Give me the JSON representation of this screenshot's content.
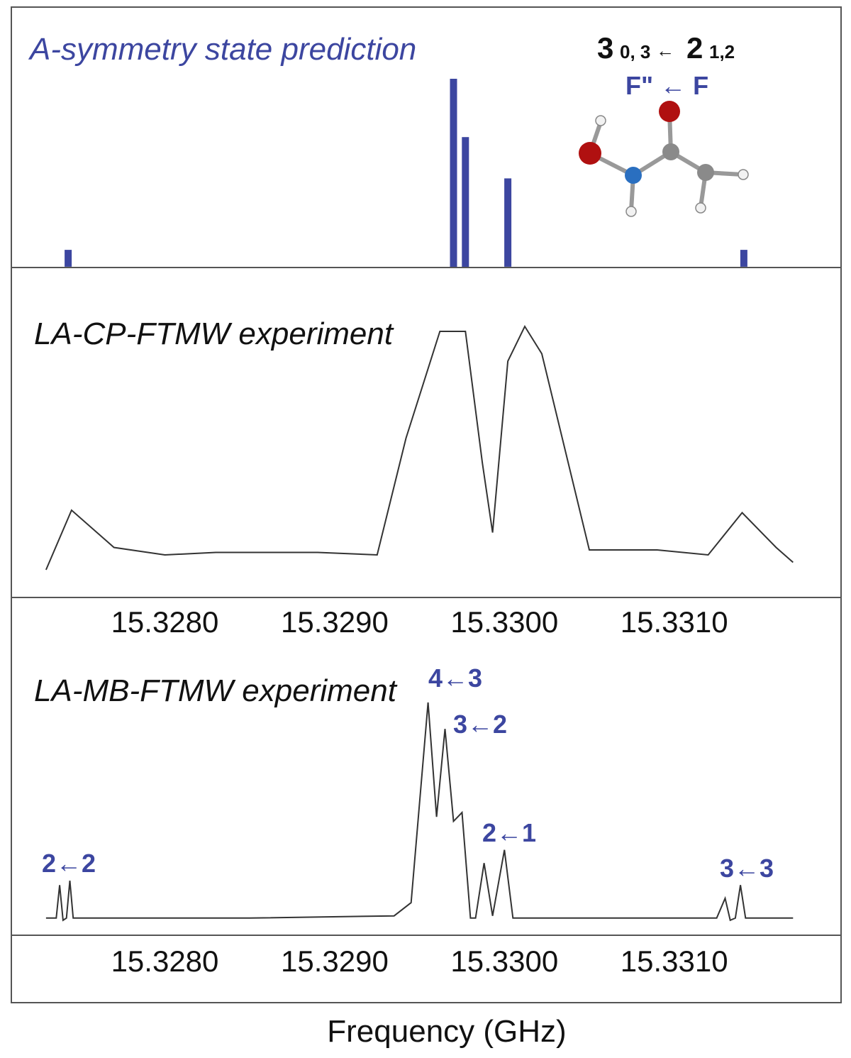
{
  "panels": {
    "prediction_title": "A-symmetry state prediction",
    "cp_title": "LA-CP-FTMW experiment",
    "mb_title": "LA-MB-FTMW experiment",
    "xlabel": "Frequency (GHz)"
  },
  "transition": {
    "upper_j": "3",
    "upper_sub": "0, 3",
    "arrow": "←",
    "lower_j": "2",
    "lower_sub": "1,2",
    "f_label": "F\" ← F"
  },
  "colors": {
    "accent": "#3c46a0",
    "trace": "#333333",
    "frame": "#555555",
    "oxygen": "#b01010",
    "nitrogen": "#2a6fc0",
    "carbon": "#8a8a8a",
    "hydrogen": "#f2f2f2"
  },
  "chart_data": [
    {
      "type": "bar",
      "panel": "prediction",
      "x": [
        15.32743,
        15.3297,
        15.32977,
        15.33002,
        15.33141
      ],
      "values": [
        0.09,
        1.0,
        0.69,
        0.47,
        0.09
      ],
      "xlim": [
        15.3272,
        15.3319
      ]
    },
    {
      "type": "line",
      "panel": "cp",
      "x": [
        15.3273,
        15.32745,
        15.3277,
        15.328,
        15.3283,
        15.3286,
        15.3289,
        15.32925,
        15.32942,
        15.32962,
        15.32977,
        15.32987,
        15.32993,
        15.33002,
        15.33012,
        15.33022,
        15.3305,
        15.3309,
        15.3312,
        15.3314,
        15.3316,
        15.3317
      ],
      "values": [
        0.02,
        0.26,
        0.11,
        0.08,
        0.09,
        0.09,
        0.09,
        0.08,
        0.55,
        0.98,
        0.98,
        0.45,
        0.17,
        0.86,
        1.0,
        0.89,
        0.1,
        0.1,
        0.08,
        0.25,
        0.11,
        0.05
      ],
      "xlim": [
        15.3272,
        15.3319
      ],
      "ticks": [
        "15.3280",
        "15.3290",
        "15.3300",
        "15.3310"
      ]
    },
    {
      "type": "line",
      "panel": "mb",
      "x": [
        15.3273,
        15.32736,
        15.32738,
        15.3274,
        15.32742,
        15.32744,
        15.32746,
        15.32748,
        15.3276,
        15.3285,
        15.32935,
        15.32945,
        15.32955,
        15.3296,
        15.32965,
        15.3297,
        15.32975,
        15.3298,
        15.32983,
        15.32988,
        15.32993,
        15.33,
        15.33005,
        15.3301,
        15.33015,
        15.3305,
        15.33125,
        15.3313,
        15.33133,
        15.33136,
        15.33139,
        15.33142,
        15.33145,
        15.3317
      ],
      "values": [
        0.02,
        0.02,
        0.17,
        0.01,
        0.02,
        0.19,
        0.02,
        0.02,
        0.02,
        0.02,
        0.03,
        0.09,
        1.0,
        0.48,
        0.88,
        0.46,
        0.5,
        0.02,
        0.02,
        0.27,
        0.03,
        0.33,
        0.02,
        0.02,
        0.02,
        0.02,
        0.02,
        0.11,
        0.01,
        0.02,
        0.17,
        0.02,
        0.02,
        0.02
      ],
      "xlim": [
        15.3272,
        15.3319
      ],
      "ticks": [
        "15.3280",
        "15.3290",
        "15.3300",
        "15.3310"
      ],
      "annotations": [
        "2←2",
        "4←3",
        "3←2",
        "2←1",
        "3←3"
      ]
    }
  ]
}
